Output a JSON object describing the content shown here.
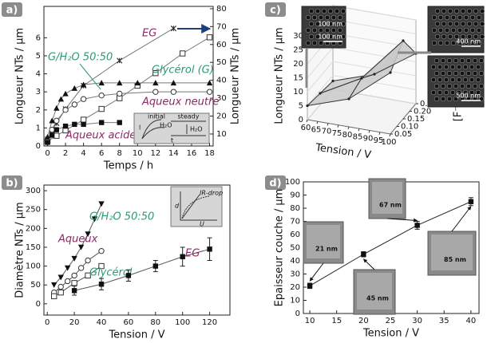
{
  "chart_data": [
    {
      "type": "line",
      "label": "a)",
      "xlabel": "Temps / h",
      "ylabel": "Longueur NTs / µm",
      "y2label": "Longueur NTs / µm",
      "xlim": [
        -0.4,
        18.4
      ],
      "xticks": [
        0,
        2,
        4,
        6,
        8,
        10,
        12,
        14,
        16,
        18
      ],
      "ylim": [
        0,
        7.74
      ],
      "yticks": [
        0,
        1,
        2,
        3,
        4,
        5,
        6
      ],
      "y2lim": [
        3.3,
        81.3
      ],
      "y2ticks": [
        10,
        20,
        30,
        40,
        50,
        60,
        70,
        80
      ],
      "inset": [
        "initial",
        "steady",
        "H₂O",
        "H₂O",
        "l",
        "t"
      ],
      "series": [
        {
          "name": "EG",
          "axis": "y2",
          "color": "#777777",
          "label_color": "#8b2a63",
          "marker": "x",
          "x": [
            0,
            0.5,
            1,
            2,
            4,
            8,
            14
          ],
          "values": [
            7,
            12,
            16,
            24,
            37,
            51,
            69
          ]
        },
        {
          "name": "Glycérol (G)",
          "axis": "y2",
          "color": "#777777",
          "label_color": "#2e9a70",
          "marker": "square-open",
          "x": [
            0,
            1,
            2,
            4,
            6,
            8,
            10,
            12,
            15,
            18
          ],
          "values": [
            6,
            9,
            12,
            18,
            24,
            30,
            37,
            44,
            55,
            64
          ]
        },
        {
          "name": "G/H₂O 50:50",
          "color": "#777777",
          "label_color": "#2e9a70",
          "marker": "circle-open",
          "x": [
            0,
            0.5,
            1,
            2,
            3,
            4,
            6,
            8,
            12,
            14,
            18
          ],
          "values": [
            0.3,
            0.9,
            1.4,
            2.0,
            2.3,
            2.6,
            2.8,
            2.9,
            3.0,
            3.0,
            3.0
          ]
        },
        {
          "name": "Aqueux neutre",
          "color": "#777777",
          "label_color": "#8b2a63",
          "marker": "triangle",
          "x": [
            0,
            0.5,
            1,
            1.5,
            2,
            3,
            4,
            6,
            8,
            10,
            12,
            14,
            18
          ],
          "values": [
            0.5,
            1.4,
            2.1,
            2.6,
            2.9,
            3.2,
            3.4,
            3.5,
            3.5,
            3.5,
            3.5,
            3.5,
            3.5
          ]
        },
        {
          "name": "Aqueux acide",
          "color": "#777777",
          "label_color": "#8b2a63",
          "marker": "square",
          "x": [
            0,
            0.5,
            1,
            2,
            3,
            4,
            6,
            8
          ],
          "values": [
            0.2,
            0.6,
            0.9,
            1.1,
            1.2,
            1.2,
            1.3,
            1.3
          ]
        }
      ]
    },
    {
      "type": "line",
      "label": "b)",
      "xlabel": "Tension / V",
      "ylabel": "Diamètre NTs / µm",
      "xlim": [
        -2.5,
        135
      ],
      "xticks": [
        0,
        20,
        40,
        60,
        80,
        100,
        120
      ],
      "ylim": [
        -30,
        315
      ],
      "yticks": [
        0,
        50,
        100,
        150,
        200,
        250,
        300
      ],
      "inset": [
        "d",
        "IR-drop",
        "U"
      ],
      "series": [
        {
          "name": "G/H₂O 50:50",
          "color": "#555555",
          "label_color": "#2e9a70",
          "marker": "triangle-down",
          "x": [
            5,
            10,
            15,
            20,
            25,
            30,
            35,
            40
          ],
          "values": [
            50,
            70,
            95,
            120,
            150,
            185,
            225,
            265
          ]
        },
        {
          "name": "Aqueux",
          "color": "#555555",
          "label_color": "#8b2a63",
          "marker": "circle-open",
          "x": [
            5,
            10,
            15,
            20,
            25,
            30,
            40
          ],
          "values": [
            30,
            45,
            60,
            75,
            95,
            115,
            140
          ]
        },
        {
          "name": "Glycérol",
          "color": "#555555",
          "label_color": "#2e9a70",
          "marker": "square-open",
          "x": [
            5,
            10,
            20,
            30,
            40
          ],
          "values": [
            20,
            30,
            55,
            75,
            100
          ]
        },
        {
          "name": "EG",
          "color": "#555555",
          "label_color": "#8b2a63",
          "marker": "square",
          "x": [
            20,
            40,
            60,
            80,
            100,
            120
          ],
          "values": [
            35,
            52,
            75,
            100,
            125,
            145
          ],
          "errors": [
            12,
            15,
            15,
            15,
            25,
            30
          ]
        }
      ]
    },
    {
      "type": "surface",
      "label": "c)",
      "zlabel": "Longueur NTs / µm",
      "xlabel": "Tension / V",
      "ylabel": "[F⁻]",
      "xlim": [
        60,
        100
      ],
      "xticks": [
        60,
        65,
        70,
        75,
        80,
        85,
        90,
        95,
        100
      ],
      "ylim": [
        0.05,
        0.25
      ],
      "yticks": [
        0.05,
        {
          "value": 0.1,
          "label": "0.10"
        },
        0.15,
        {
          "value": 0.2,
          "label": "0.20"
        },
        0.25
      ],
      "zlim": [
        0,
        30
      ],
      "zticks": [
        0,
        5,
        10,
        15,
        20,
        25,
        30
      ],
      "x": [
        60,
        80,
        100
      ],
      "y": [
        0.05,
        0.15,
        0.25
      ],
      "z": [
        [
          5,
          10,
          22
        ],
        [
          4,
          12,
          28
        ],
        [
          3,
          8,
          18
        ]
      ],
      "scale_bars": [
        "100 nm",
        "100 nm",
        "400 nm",
        "500 nm"
      ]
    },
    {
      "type": "line",
      "label": "d)",
      "xlabel": "Tension / V",
      "ylabel": "Epaisseur couche / µm",
      "xlim": [
        8.8,
        41.5
      ],
      "xticks": [
        10,
        15,
        20,
        25,
        30,
        35,
        40
      ],
      "ylim": [
        0,
        100
      ],
      "yticks": [
        0,
        10,
        20,
        30,
        40,
        50,
        60,
        70,
        80,
        90,
        100
      ],
      "annotations": [
        "21 nm",
        "45 nm",
        "67 nm",
        "85 nm"
      ],
      "series": [
        {
          "color": "#222222",
          "marker": "square",
          "x": [
            10,
            20,
            30,
            40
          ],
          "values": [
            21,
            45,
            67,
            85
          ],
          "errors": [
            2,
            2,
            3,
            3
          ]
        }
      ]
    }
  ]
}
